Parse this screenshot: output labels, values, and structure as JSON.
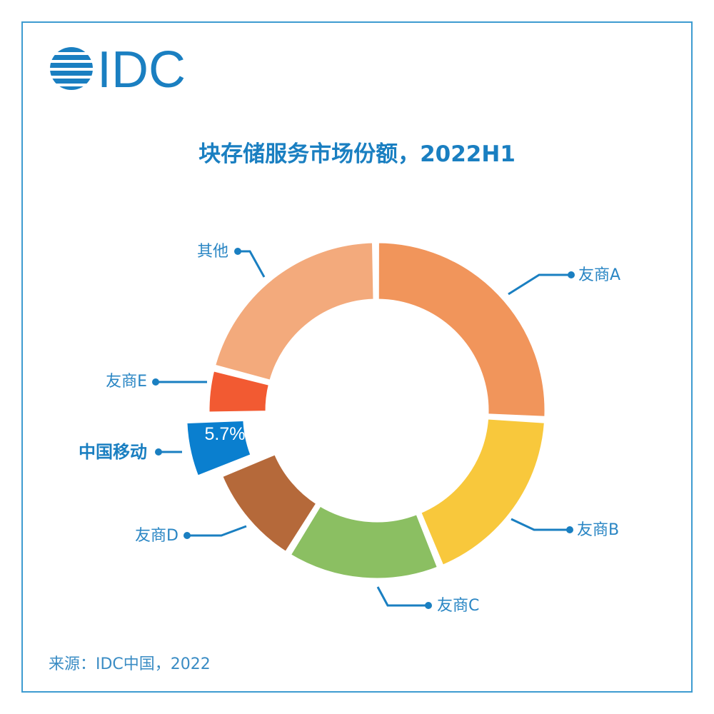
{
  "logo_text": "IDC",
  "colors": {
    "accent": "#1a7fc1",
    "frame": "#3d9bd0"
  },
  "chart_data": {
    "type": "pie",
    "variant": "donut",
    "title": "块存储服务市场份额，2022H1",
    "source": "来源：IDC中国，2022",
    "highlight": "中国移动",
    "slices": [
      {
        "label": "友商A",
        "value": 26.0,
        "color": "#f1955b"
      },
      {
        "label": "友商B",
        "value": 18.0,
        "color": "#f8c83c"
      },
      {
        "label": "友商C",
        "value": 15.0,
        "color": "#8bbf62"
      },
      {
        "label": "友商D",
        "value": 10.0,
        "color": "#b5693a"
      },
      {
        "label": "中国移动",
        "value": 5.7,
        "color": "#0a7fcf",
        "data_label": "5.7%",
        "exploded": true
      },
      {
        "label": "友商E",
        "value": 4.5,
        "color": "#f25a32"
      },
      {
        "label": "其他",
        "value": 20.8,
        "color": "#f3aa7c"
      }
    ]
  }
}
